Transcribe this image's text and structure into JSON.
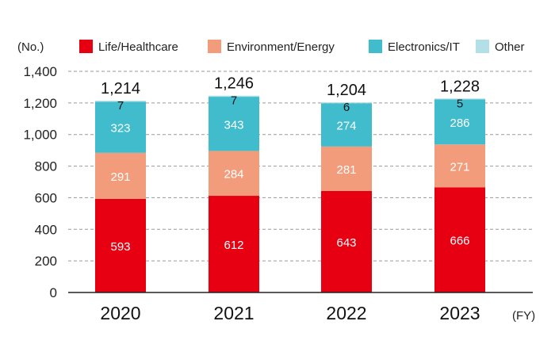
{
  "chart_data": {
    "type": "bar",
    "stacked": true,
    "y_unit_label": "(No.)",
    "x_unit_label": "(FY)",
    "categories": [
      "2020",
      "2021",
      "2022",
      "2023"
    ],
    "ylim": [
      0,
      1400
    ],
    "yticks": [
      0,
      200,
      400,
      600,
      800,
      1000,
      1200,
      1400
    ],
    "ytick_labels": [
      "0",
      "200",
      "400",
      "600",
      "800",
      "1,000",
      "1,200",
      "1,400"
    ],
    "grid": true,
    "legend_position": "top",
    "series": [
      {
        "name": "Life/Healthcare",
        "color": "#e60012",
        "label_color": "#ffffff",
        "values": [
          593,
          612,
          643,
          666
        ]
      },
      {
        "name": "Environment/Energy",
        "color": "#f29c7b",
        "label_color": "#ffffff",
        "values": [
          291,
          284,
          281,
          271
        ]
      },
      {
        "name": "Electronics/IT",
        "color": "#40bccd",
        "label_color": "#ffffff",
        "values": [
          323,
          343,
          274,
          286
        ]
      },
      {
        "name": "Other",
        "color": "#b3e0e6",
        "label_color": "#111111",
        "values": [
          7,
          7,
          6,
          5
        ]
      }
    ],
    "totals": [
      1214,
      1246,
      1204,
      1228
    ],
    "total_labels": [
      "1,214",
      "1,246",
      "1,204",
      "1,228"
    ]
  }
}
